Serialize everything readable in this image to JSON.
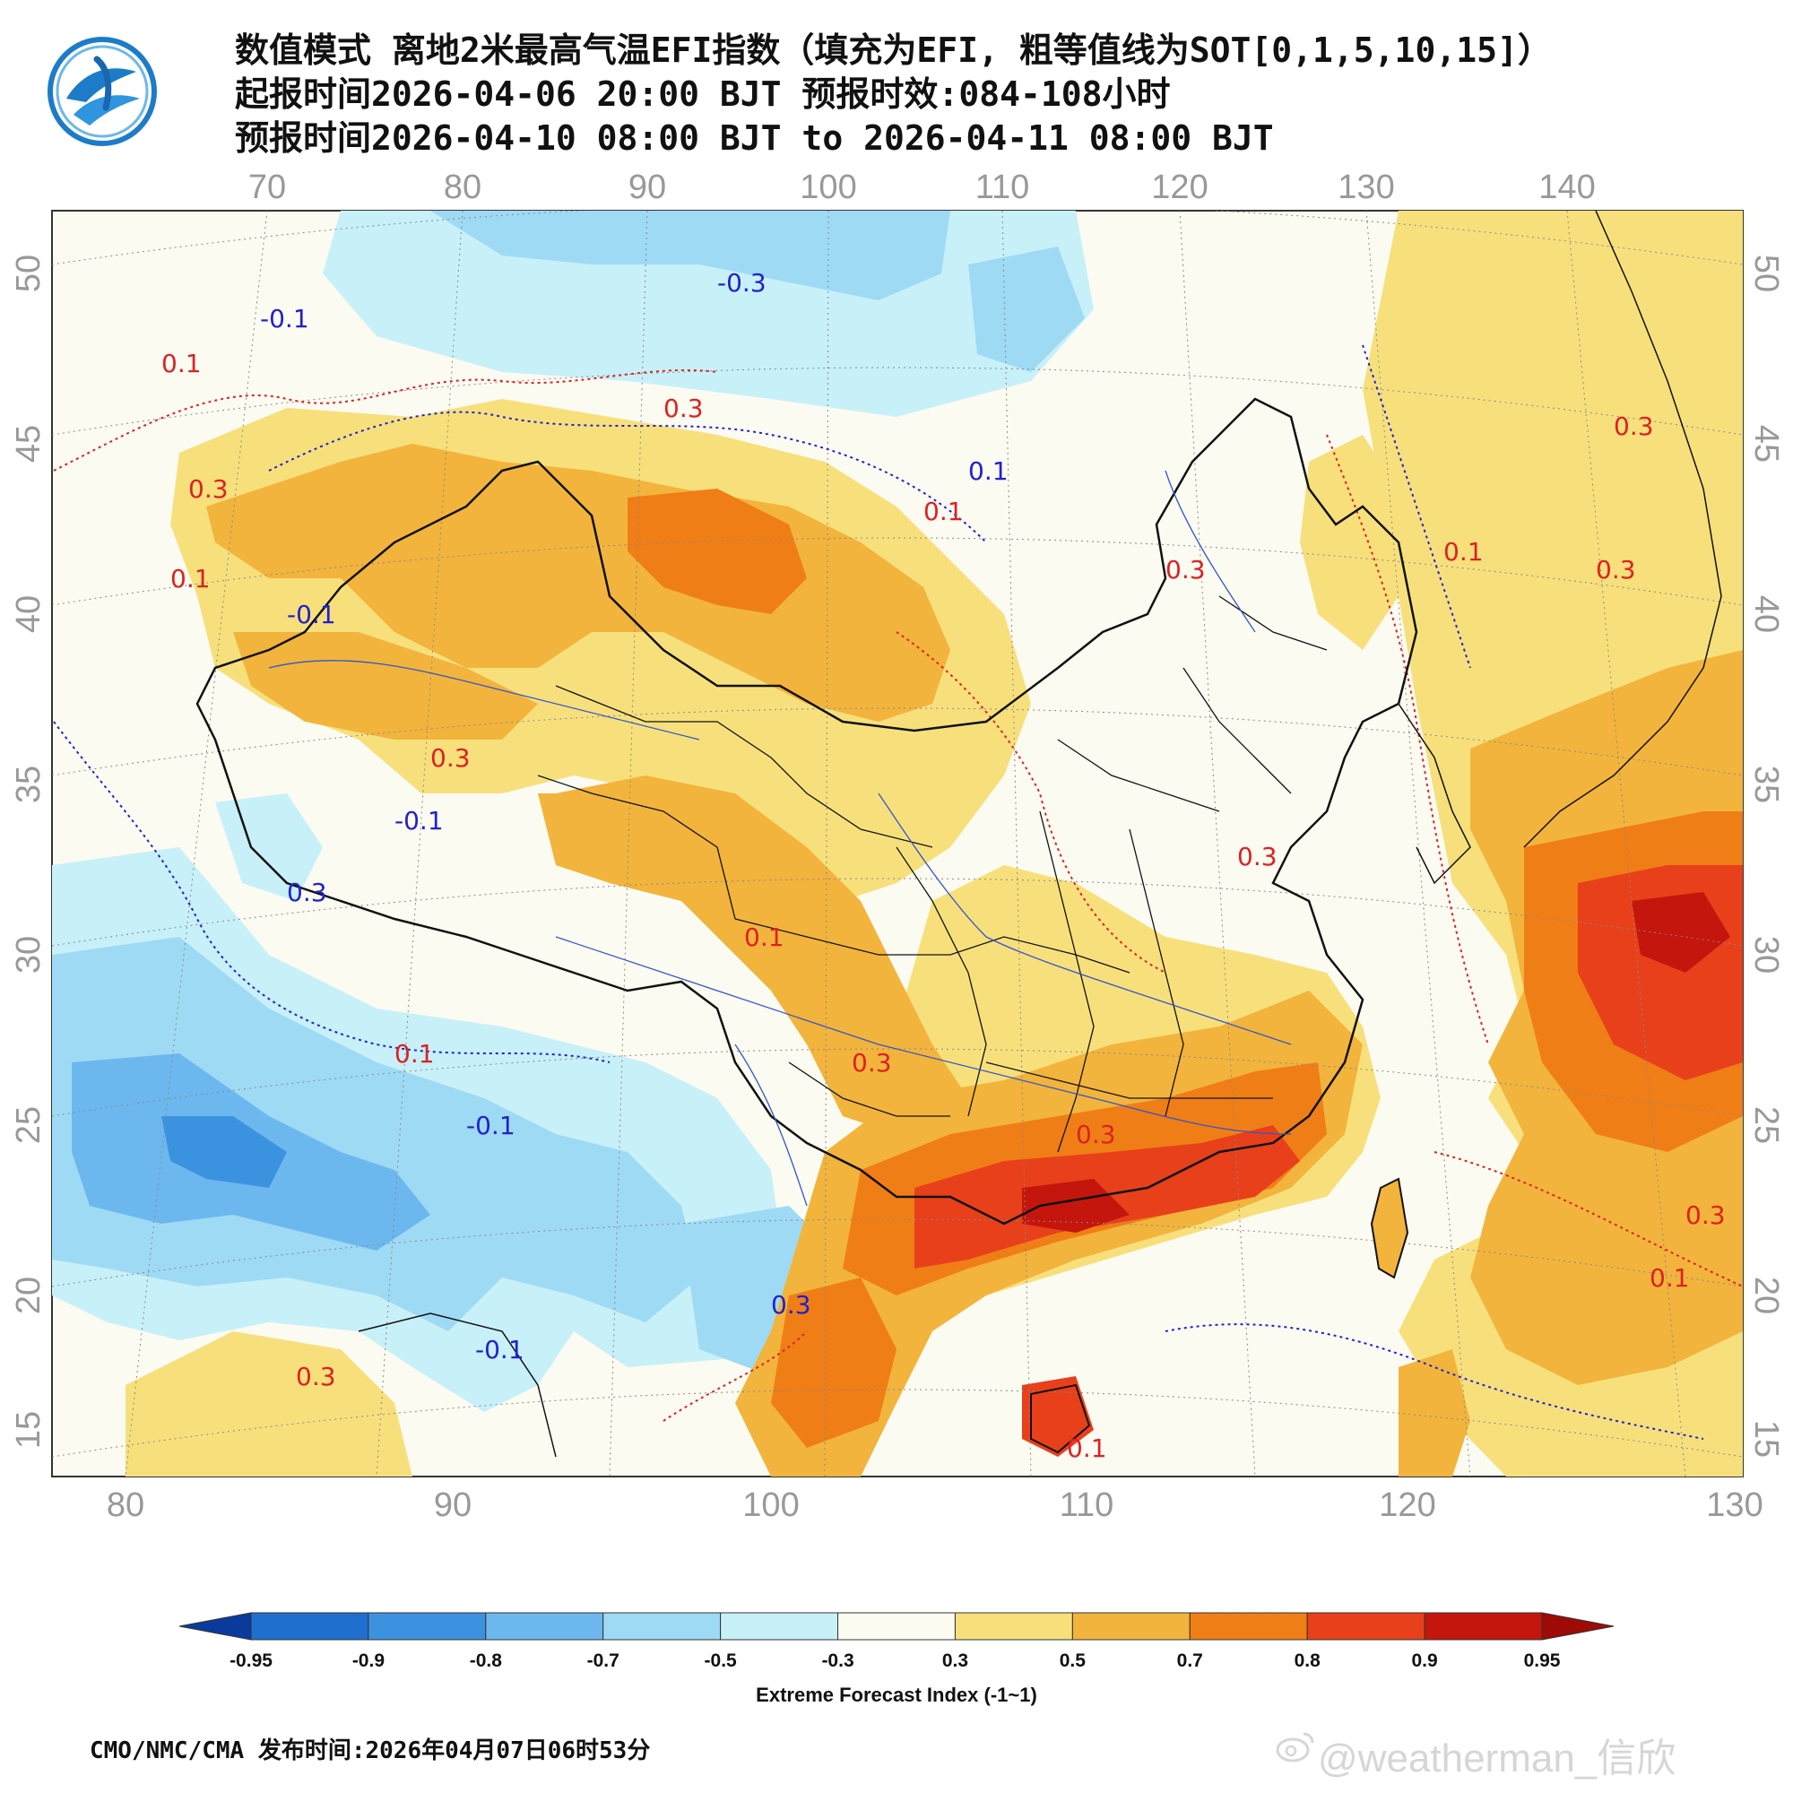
{
  "title": {
    "line1": "数值模式 离地2米最高气温EFI指数（填充为EFI, 粗等值线为SOT[0,1,5,10,15]）",
    "line2": "起报时间2026-04-06 20:00 BJT 预报时效:084-108小时",
    "line3": "预报时间2026-04-10 08:00 BJT to 2026-04-11 08:00 BJT"
  },
  "top_lon_labels": [
    "70",
    "80",
    "90",
    "100",
    "110",
    "120",
    "130",
    "140"
  ],
  "bottom_lon_labels": [
    "80",
    "90",
    "100",
    "110",
    "120",
    "130"
  ],
  "left_lat_labels": [
    "50",
    "45",
    "40",
    "35",
    "30",
    "25",
    "20",
    "15"
  ],
  "right_lat_labels": [
    "50",
    "45",
    "40",
    "35",
    "30",
    "25",
    "20",
    "15"
  ],
  "contour_labels": [
    {
      "text": "-0.1",
      "color": "#2222cc"
    },
    {
      "text": "0.1",
      "color": "#dd2222"
    },
    {
      "text": "0.3",
      "color": "#dd2222"
    },
    {
      "text": "-0.3",
      "color": "#2222cc"
    },
    {
      "text": "0.3",
      "color": "#dd2222"
    },
    {
      "text": "0.1",
      "color": "#2222cc"
    },
    {
      "text": "0.1",
      "color": "#dd2222"
    },
    {
      "text": "0.3",
      "color": "#dd2222"
    },
    {
      "text": "0.1",
      "color": "#dd2222"
    },
    {
      "text": "-0.1",
      "color": "#2222cc"
    },
    {
      "text": "0.3",
      "color": "#dd2222"
    },
    {
      "text": "-0.1",
      "color": "#2222cc"
    },
    {
      "text": "0.3",
      "color": "#2222cc"
    },
    {
      "text": "0.1",
      "color": "#dd2222"
    },
    {
      "text": "0.3",
      "color": "#dd2222"
    },
    {
      "text": "0.3",
      "color": "#dd2222"
    },
    {
      "text": "0.1",
      "color": "#dd2222"
    },
    {
      "text": "0.3",
      "color": "#dd2222"
    },
    {
      "text": "-0.1",
      "color": "#2222cc"
    },
    {
      "text": "0.3",
      "color": "#dd2222"
    },
    {
      "text": "0.3",
      "color": "#2222cc"
    },
    {
      "text": "-0.1",
      "color": "#2222cc"
    },
    {
      "text": "0.1",
      "color": "#dd2222"
    },
    {
      "text": "0.1",
      "color": "#dd2222"
    },
    {
      "text": "0.3",
      "color": "#dd2222"
    },
    {
      "text": "0.1",
      "color": "#dd2222"
    },
    {
      "text": "0.3",
      "color": "#dd2222"
    },
    {
      "text": "0.3",
      "color": "#dd2222"
    }
  ],
  "colorbar": {
    "ticks": [
      "-0.95",
      "-0.9",
      "-0.8",
      "-0.7",
      "-0.5",
      "-0.3",
      "0.3",
      "0.5",
      "0.7",
      "0.8",
      "0.9",
      "0.95"
    ],
    "colors": [
      "#0a3a9c",
      "#1f6fcf",
      "#3b93e0",
      "#6cb8ee",
      "#9fdaf5",
      "#c8f0f8",
      "#fbfbf2",
      "#f7e07c",
      "#f2b43c",
      "#f07e16",
      "#e8401a",
      "#c4160c",
      "#9e0a06"
    ],
    "label": "Extreme Forecast Index (-1~1)"
  },
  "footer": "CMO/NMC/CMA 发布时间:2026年04月07日06时53分",
  "watermark": "@weatherman_信欣"
}
